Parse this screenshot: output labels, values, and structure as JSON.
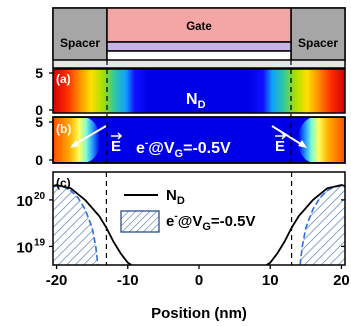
{
  "device": {
    "gate_label": "Gate",
    "spacer_left_label": "Spacer",
    "spacer_right_label": "Spacer",
    "colors": {
      "gate": "#f4a6a6",
      "oxide": "#c9b3e6",
      "spacer": "#a6a6a6",
      "channel_strip": "#e6e6e6"
    }
  },
  "panel_a": {
    "tag": "(a)",
    "label_main": "N",
    "label_sub": "D",
    "yticks": [
      "5",
      "0"
    ]
  },
  "panel_b": {
    "tag": "(b)",
    "legend_main": "e",
    "legend_sup": "-",
    "legend_rest": "@V",
    "legend_sub": "G",
    "legend_val": "=-0.5V",
    "field_label_left": "E",
    "field_label_right": "E",
    "yticks": [
      "5",
      "0"
    ]
  },
  "panel_c": {
    "tag": "(c)",
    "legend_nd_main": "N",
    "legend_nd_sub": "D",
    "legend_e_main": "e",
    "legend_e_sup": "-",
    "legend_e_rest": "@V",
    "legend_e_sub": "G",
    "legend_e_val": "=-0.5V"
  },
  "chart_data": {
    "type": "line",
    "xlabel": "Position (nm)",
    "ylabel": "",
    "xlim": [
      -20.5,
      20.5
    ],
    "ylim_log10": [
      18.6,
      20.6
    ],
    "y_scale": "log",
    "xticks": [
      -20,
      -10,
      0,
      10,
      20
    ],
    "xtick_labels": [
      "-20",
      "-10",
      "0",
      "10",
      "20"
    ],
    "yticks_log10": [
      19,
      20
    ],
    "ytick_labels": [
      {
        "base": "10",
        "exp": "19"
      },
      {
        "base": "10",
        "exp": "20"
      }
    ],
    "gate_edges": [
      -13,
      13
    ],
    "series": [
      {
        "name": "N_D",
        "style": "solid black line",
        "x": [
          -20.5,
          -20,
          -18,
          -16,
          -14,
          -13,
          -12,
          -11,
          -10,
          -9.5
        ],
        "y_log10": [
          20.3,
          20.32,
          20.25,
          20.0,
          19.65,
          19.4,
          19.1,
          18.85,
          18.65,
          18.6
        ]
      },
      {
        "name": "N_D",
        "style": "solid black line",
        "x": [
          9.5,
          10,
          11,
          12,
          13,
          14,
          16,
          18,
          20,
          20.5
        ],
        "y_log10": [
          18.6,
          18.65,
          18.85,
          19.1,
          19.4,
          19.65,
          20.0,
          20.25,
          20.32,
          20.3
        ]
      },
      {
        "name": "e@VG=-0.5V",
        "style": "hatched blue, dashed edge",
        "x": [
          -20.5,
          -20,
          -19,
          -18,
          -17,
          -16,
          -15,
          -14.5,
          -14.2
        ],
        "y_log10": [
          20.28,
          20.3,
          20.28,
          20.2,
          20.05,
          19.8,
          19.4,
          19.0,
          18.6
        ]
      },
      {
        "name": "e@VG=-0.5V",
        "style": "hatched blue, dashed edge",
        "x": [
          14.2,
          14.5,
          15,
          16,
          17,
          18,
          19,
          20,
          20.5
        ],
        "y_log10": [
          18.6,
          19.0,
          19.4,
          19.8,
          20.05,
          20.2,
          20.28,
          20.3,
          20.28
        ]
      }
    ]
  }
}
